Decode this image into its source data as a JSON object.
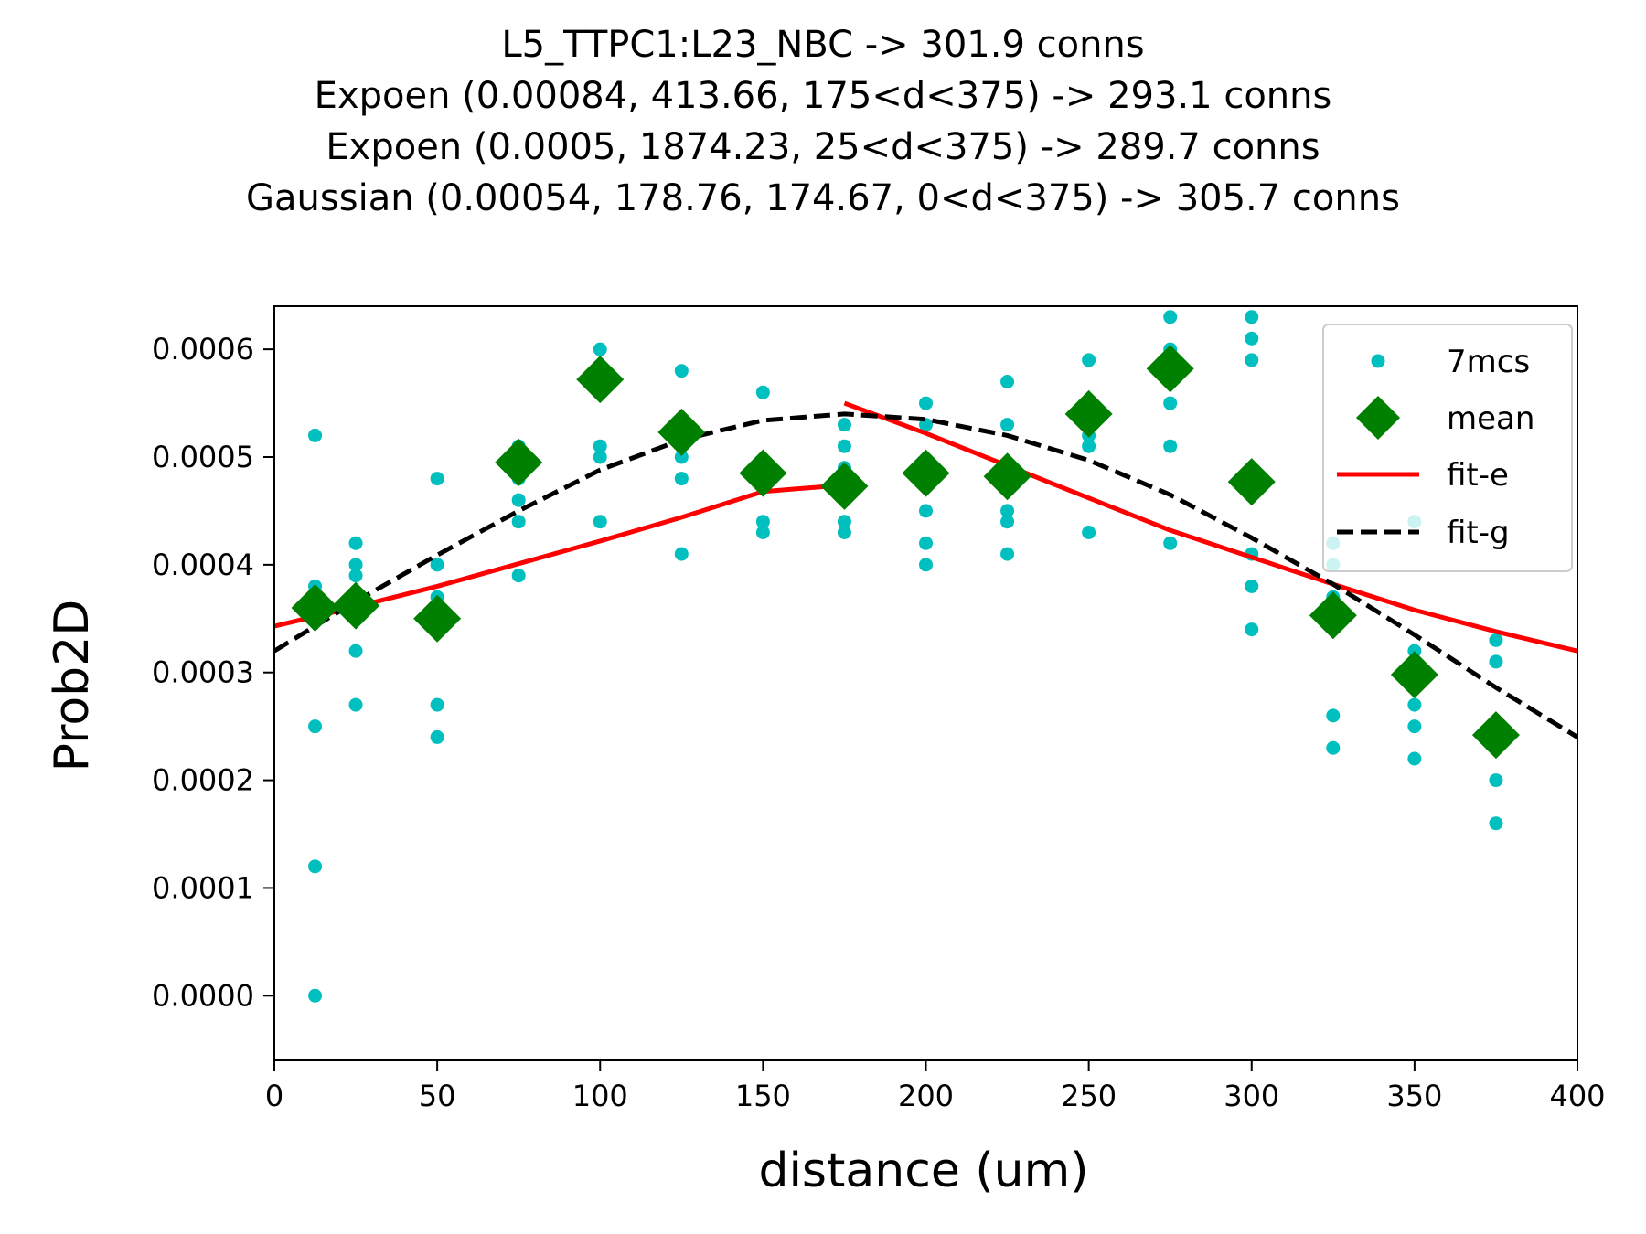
{
  "chart_data": {
    "type": "scatter",
    "title_lines": [
      "L5_TTPC1:L23_NBC -> 301.9 conns",
      "Expoen (0.00084, 413.66, 175<d<375) -> 293.1 conns",
      "Expoen (0.0005, 1874.23, 25<d<375) -> 289.7 conns",
      "Gaussian (0.00054, 178.76, 174.67, 0<d<375) -> 305.7 conns"
    ],
    "xlabel": "distance (um)",
    "ylabel": "Prob2D",
    "xlim": [
      0,
      400
    ],
    "ylim": [
      -6e-05,
      0.00064
    ],
    "xticks": [
      0,
      50,
      100,
      150,
      200,
      250,
      300,
      350,
      400
    ],
    "xtick_labels": [
      "0",
      "50",
      "100",
      "150",
      "200",
      "250",
      "300",
      "350",
      "400"
    ],
    "yticks": [
      0.0,
      0.0001,
      0.0002,
      0.0003,
      0.0004,
      0.0005,
      0.0006
    ],
    "ytick_labels": [
      "0.0000",
      "0.0001",
      "0.0002",
      "0.0003",
      "0.0004",
      "0.0005",
      "0.0006"
    ],
    "grid": false,
    "legend_position": "top-right",
    "series": [
      {
        "name": "7mcs",
        "kind": "dots",
        "color": "#00bfbf",
        "points": [
          [
            12.5,
            0.00052
          ],
          [
            12.5,
            0.00038
          ],
          [
            12.5,
            0.00035
          ],
          [
            12.5,
            0.00025
          ],
          [
            12.5,
            0.00012
          ],
          [
            12.5,
            0.0
          ],
          [
            25,
            0.00042
          ],
          [
            25,
            0.0004
          ],
          [
            25,
            0.00039
          ],
          [
            25,
            0.00037
          ],
          [
            25,
            0.00032
          ],
          [
            25,
            0.00027
          ],
          [
            50,
            0.00048
          ],
          [
            50,
            0.0004
          ],
          [
            50,
            0.00037
          ],
          [
            50,
            0.00027
          ],
          [
            50,
            0.00024
          ],
          [
            75,
            0.00051
          ],
          [
            75,
            0.00048
          ],
          [
            75,
            0.00046
          ],
          [
            75,
            0.00044
          ],
          [
            75,
            0.00039
          ],
          [
            100,
            0.0006
          ],
          [
            100,
            0.00051
          ],
          [
            100,
            0.0005
          ],
          [
            100,
            0.00044
          ],
          [
            125,
            0.00058
          ],
          [
            125,
            0.00052
          ],
          [
            125,
            0.0005
          ],
          [
            125,
            0.00048
          ],
          [
            125,
            0.00041
          ],
          [
            150,
            0.00056
          ],
          [
            150,
            0.00049
          ],
          [
            150,
            0.00044
          ],
          [
            150,
            0.00043
          ],
          [
            175,
            0.00053
          ],
          [
            175,
            0.00051
          ],
          [
            175,
            0.00049
          ],
          [
            175,
            0.00048
          ],
          [
            175,
            0.00044
          ],
          [
            175,
            0.00043
          ],
          [
            200,
            0.00055
          ],
          [
            200,
            0.00053
          ],
          [
            200,
            0.00045
          ],
          [
            200,
            0.00042
          ],
          [
            200,
            0.0004
          ],
          [
            225,
            0.00057
          ],
          [
            225,
            0.00053
          ],
          [
            225,
            0.00045
          ],
          [
            225,
            0.00044
          ],
          [
            225,
            0.00041
          ],
          [
            250,
            0.00059
          ],
          [
            250,
            0.00052
          ],
          [
            250,
            0.00051
          ],
          [
            250,
            0.00043
          ],
          [
            275,
            0.00063
          ],
          [
            275,
            0.0006
          ],
          [
            275,
            0.00058
          ],
          [
            275,
            0.00055
          ],
          [
            275,
            0.00051
          ],
          [
            275,
            0.00042
          ],
          [
            300,
            0.00063
          ],
          [
            300,
            0.00061
          ],
          [
            300,
            0.00059
          ],
          [
            300,
            0.00041
          ],
          [
            300,
            0.00038
          ],
          [
            300,
            0.00034
          ],
          [
            325,
            0.00042
          ],
          [
            325,
            0.0004
          ],
          [
            325,
            0.00037
          ],
          [
            325,
            0.00026
          ],
          [
            325,
            0.00023
          ],
          [
            350,
            0.00044
          ],
          [
            350,
            0.00032
          ],
          [
            350,
            0.00027
          ],
          [
            350,
            0.00025
          ],
          [
            350,
            0.00022
          ],
          [
            375,
            0.00033
          ],
          [
            375,
            0.00031
          ],
          [
            375,
            0.0002
          ],
          [
            375,
            0.00016
          ]
        ]
      },
      {
        "name": "mean",
        "kind": "diamonds",
        "color": "#008000",
        "points": [
          [
            12.5,
            0.00036
          ],
          [
            25,
            0.000362
          ],
          [
            50,
            0.00035
          ],
          [
            75,
            0.000495
          ],
          [
            100,
            0.000572
          ],
          [
            125,
            0.000523
          ],
          [
            150,
            0.000485
          ],
          [
            175,
            0.000473
          ],
          [
            200,
            0.000485
          ],
          [
            225,
            0.000482
          ],
          [
            250,
            0.00054
          ],
          [
            275,
            0.000582
          ],
          [
            300,
            0.000477
          ],
          [
            325,
            0.000353
          ],
          [
            350,
            0.000298
          ],
          [
            375,
            0.000242
          ]
        ]
      },
      {
        "name": "fit-e",
        "kind": "line",
        "color": "#ff0000",
        "segments": [
          [
            [
              0,
              0.000343
            ],
            [
              25,
              0.000361
            ],
            [
              50,
              0.00038
            ],
            [
              75,
              0.000401
            ],
            [
              100,
              0.000422
            ],
            [
              125,
              0.000444
            ],
            [
              150,
              0.000468
            ],
            [
              175,
              0.000474
            ]
          ],
          [
            [
              175,
              0.00055
            ],
            [
              200,
              0.000522
            ],
            [
              225,
              0.000492
            ],
            [
              250,
              0.000462
            ],
            [
              275,
              0.000432
            ],
            [
              300,
              0.000407
            ],
            [
              325,
              0.000382
            ],
            [
              350,
              0.000358
            ],
            [
              375,
              0.000338
            ],
            [
              400,
              0.00032
            ]
          ]
        ]
      },
      {
        "name": "fit-g",
        "kind": "dashed-line",
        "color": "#000000",
        "segments": [
          [
            [
              0,
              0.00032
            ],
            [
              25,
              0.000366
            ],
            [
              50,
              0.000409
            ],
            [
              75,
              0.00045
            ],
            [
              100,
              0.000488
            ],
            [
              125,
              0.000516
            ],
            [
              150,
              0.000534
            ],
            [
              175,
              0.00054
            ],
            [
              200,
              0.000535
            ],
            [
              225,
              0.00052
            ],
            [
              250,
              0.000497
            ],
            [
              275,
              0.000465
            ],
            [
              300,
              0.000425
            ],
            [
              325,
              0.000382
            ],
            [
              350,
              0.000335
            ],
            [
              375,
              0.000286
            ],
            [
              400,
              0.00024
            ]
          ]
        ]
      }
    ]
  }
}
